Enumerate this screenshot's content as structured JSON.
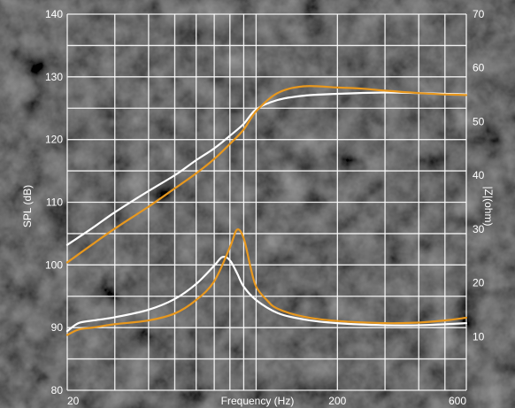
{
  "chart_data": {
    "type": "line",
    "xlabel": "Frequency (Hz)",
    "ylabel": "SPL (dB)",
    "ylabel_right": "|Z|(ohm)",
    "x_scale": "log",
    "xlim": [
      20,
      600
    ],
    "ylim": [
      80,
      140
    ],
    "ylim_right": [
      0,
      70
    ],
    "x_ticks": [
      "20",
      "200",
      "600"
    ],
    "y_ticks": [
      "140",
      "130",
      "120",
      "110",
      "100",
      "90",
      "80"
    ],
    "y_ticks_right": [
      "70",
      "60",
      "50",
      "40",
      "30",
      "20",
      "10"
    ],
    "grid": true,
    "series": [
      {
        "axis": "left",
        "color": "#ffffff",
        "x": [
          20,
          25,
          30,
          40,
          50,
          60,
          70,
          80,
          90,
          100,
          120,
          150,
          200,
          300,
          400,
          500,
          600
        ],
        "values": [
          103.2,
          106,
          108.4,
          111.8,
          114.3,
          116.7,
          118.6,
          120.6,
          122.5,
          124.8,
          126.3,
          127,
          127.3,
          127.5,
          127.4,
          127.3,
          127.2
        ]
      },
      {
        "axis": "left",
        "color": "#e8981e",
        "x": [
          20,
          25,
          30,
          40,
          50,
          60,
          70,
          80,
          90,
          100,
          120,
          150,
          200,
          250,
          300,
          400,
          500,
          600
        ],
        "values": [
          100.4,
          103.4,
          105.8,
          109.3,
          112.2,
          114.6,
          116.9,
          119.3,
          121.6,
          124.5,
          127.4,
          128.5,
          128.3,
          128.1,
          127.8,
          127.4,
          127.2,
          127.1
        ]
      },
      {
        "axis": "right",
        "color": "#ffffff",
        "x": [
          20,
          22,
          25,
          30,
          40,
          50,
          60,
          70,
          75,
          80,
          85,
          90,
          100,
          120,
          150,
          200,
          300,
          400,
          500,
          600
        ],
        "values": [
          11,
          12.5,
          13,
          13.6,
          15,
          17,
          19.8,
          23.2,
          24.8,
          24.2,
          21.8,
          19.3,
          16.8,
          14.4,
          13.2,
          12.5,
          12.1,
          12.1,
          12.3,
          12.5
        ]
      },
      {
        "axis": "right",
        "color": "#e8981e",
        "x": [
          20,
          22,
          25,
          30,
          40,
          50,
          60,
          70,
          80,
          85,
          90,
          95,
          100,
          110,
          120,
          150,
          200,
          300,
          400,
          500,
          600
        ],
        "values": [
          10.3,
          11.3,
          11.7,
          12.3,
          13,
          14.3,
          16.8,
          20.3,
          26.6,
          29.9,
          28.3,
          23.3,
          19.3,
          16.7,
          15.2,
          13.7,
          12.9,
          12.5,
          12.6,
          13,
          13.5
        ]
      }
    ]
  }
}
